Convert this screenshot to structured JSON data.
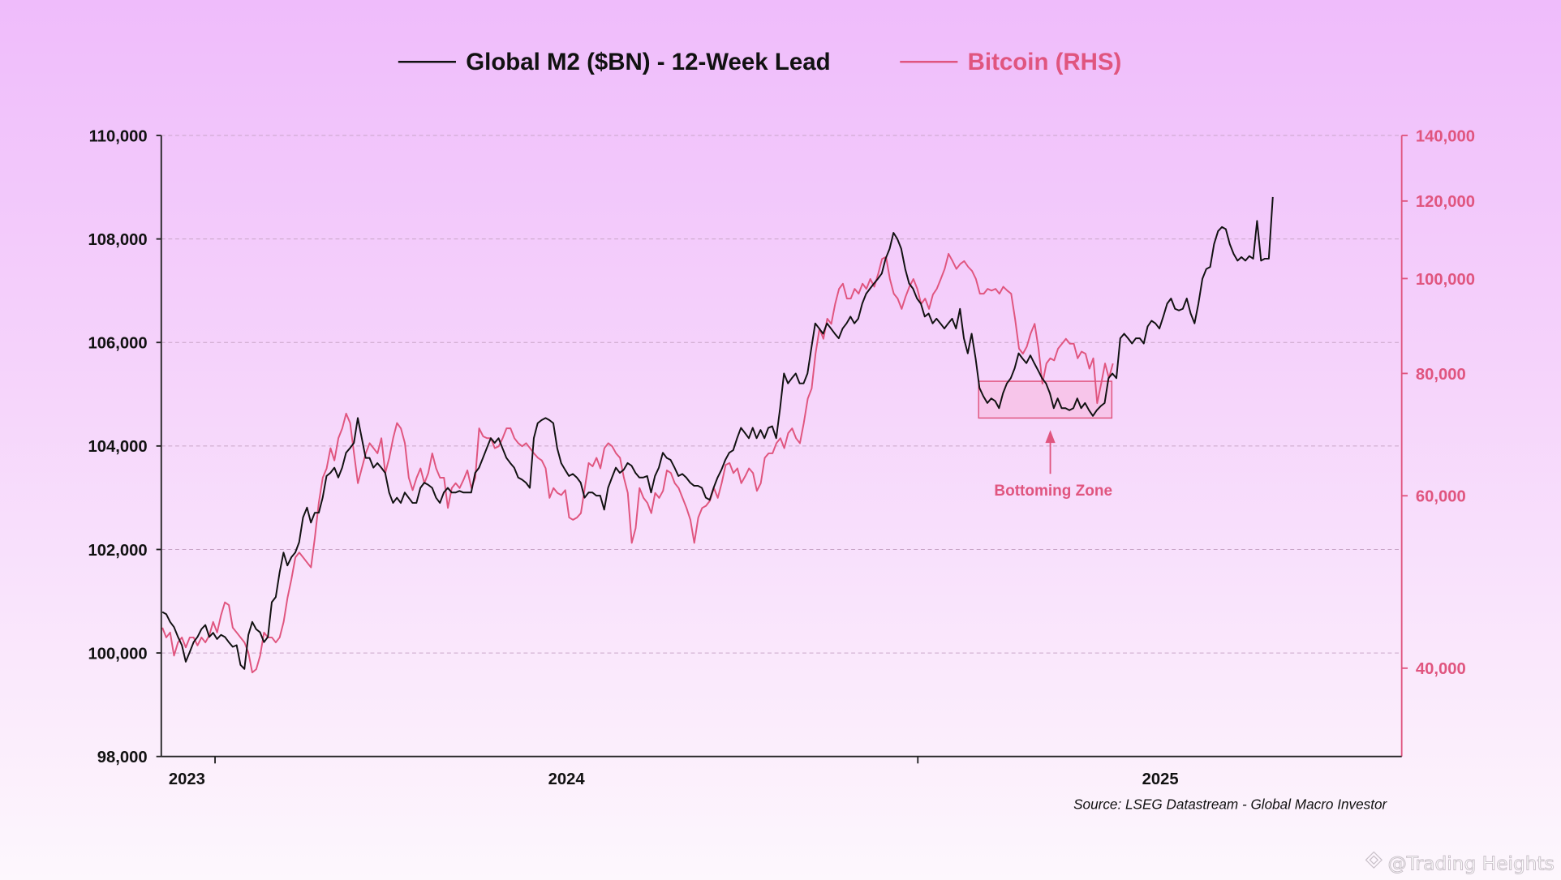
{
  "colors": {
    "m2": "#111111",
    "bitcoin": "#e0557f",
    "grid": "#c9a6c8",
    "zone_fill": "#f7b8dc",
    "background_top": "#efbcfb",
    "background_bottom": "#fdf7fd"
  },
  "legend": {
    "m2_label": "Global M2 ($BN) - 12-Week Lead",
    "bitcoin_label": "Bitcoin (RHS)"
  },
  "source": "Source: LSEG Datastream - Global Macro Investor",
  "watermark": "@Trading Heights",
  "chart_data": {
    "type": "line",
    "legend_position": "top",
    "grid": "horizontal dashed",
    "xlim": [
      2022.847,
      2026.377
    ],
    "x_ticks": [
      2023.0,
      2025.0
    ],
    "x_tick_labels": [
      {
        "label": "2023",
        "x": 2022.92
      },
      {
        "label": "2024",
        "x": 2024.0
      },
      {
        "label": "2025",
        "x": 2025.69
      }
    ],
    "y_left": {
      "ylim": [
        98000,
        110000
      ],
      "ticks": [
        98000,
        100000,
        102000,
        104000,
        106000,
        108000,
        110000
      ],
      "tick_labels": [
        "98,000",
        "100,000",
        "102,000",
        "104,000",
        "106,000",
        "108,000",
        "110,000"
      ],
      "scale": "linear"
    },
    "y_right": {
      "ylim": [
        32500,
        140000
      ],
      "ticks": [
        40000,
        60000,
        80000,
        100000,
        120000,
        140000
      ],
      "tick_labels": [
        "40,000",
        "60,000",
        "80,000",
        "100,000",
        "120,000",
        "140,000"
      ],
      "scale": "log"
    },
    "series": [
      {
        "name": "Global M2 ($BN) - 12-Week Lead",
        "axis": "left",
        "x_start": 2022.85,
        "x_end": 2026.01,
        "values": [
          100790,
          100750,
          100600,
          100500,
          100310,
          100150,
          99830,
          100020,
          100210,
          100310,
          100460,
          100540,
          100310,
          100390,
          100270,
          100350,
          100310,
          100210,
          100120,
          100150,
          99770,
          99690,
          100350,
          100600,
          100460,
          100400,
          100210,
          100310,
          100980,
          101080,
          101560,
          101940,
          101690,
          101850,
          101940,
          102140,
          102620,
          102810,
          102520,
          102710,
          102710,
          103000,
          103420,
          103480,
          103580,
          103390,
          103580,
          103870,
          103960,
          104060,
          104540,
          104150,
          103770,
          103770,
          103580,
          103670,
          103580,
          103480,
          103100,
          102900,
          103000,
          102900,
          103100,
          103000,
          102900,
          102900,
          103190,
          103290,
          103250,
          103190,
          103000,
          102900,
          103100,
          103190,
          103100,
          103100,
          103130,
          103100,
          103100,
          103100,
          103480,
          103580,
          103770,
          103960,
          104150,
          104060,
          104150,
          103960,
          103770,
          103670,
          103580,
          103390,
          103350,
          103290,
          103190,
          104150,
          104440,
          104500,
          104540,
          104500,
          104440,
          103960,
          103670,
          103540,
          103420,
          103460,
          103390,
          103290,
          103000,
          103100,
          103100,
          103040,
          103040,
          102770,
          103190,
          103390,
          103580,
          103480,
          103540,
          103670,
          103620,
          103480,
          103390,
          103390,
          103420,
          103100,
          103420,
          103580,
          103870,
          103770,
          103730,
          103580,
          103420,
          103460,
          103390,
          103290,
          103230,
          103230,
          103190,
          103000,
          102960,
          103190,
          103390,
          103540,
          103730,
          103870,
          103920,
          104150,
          104350,
          104250,
          104150,
          104350,
          104150,
          104310,
          104150,
          104350,
          104380,
          104150,
          104730,
          105400,
          105210,
          105310,
          105400,
          105210,
          105210,
          105400,
          105890,
          106370,
          106270,
          106170,
          106370,
          106270,
          106170,
          106080,
          106270,
          106370,
          106500,
          106370,
          106460,
          106750,
          106940,
          107040,
          107140,
          107230,
          107330,
          107620,
          107810,
          108120,
          108000,
          107810,
          107420,
          107140,
          107040,
          106850,
          106750,
          106500,
          106560,
          106370,
          106460,
          106370,
          106270,
          106370,
          106460,
          106270,
          106650,
          106080,
          105790,
          106170,
          105690,
          105120,
          104960,
          104830,
          104920,
          104870,
          104730,
          105020,
          105210,
          105310,
          105500,
          105790,
          105690,
          105600,
          105750,
          105600,
          105460,
          105310,
          105210,
          105020,
          104730,
          104920,
          104730,
          104730,
          104690,
          104730,
          104920,
          104730,
          104830,
          104690,
          104580,
          104690,
          104770,
          104830,
          105310,
          105400,
          105310,
          106080,
          106170,
          106080,
          105980,
          106080,
          106080,
          105980,
          106310,
          106420,
          106370,
          106270,
          106500,
          106750,
          106850,
          106650,
          106620,
          106650,
          106850,
          106560,
          106370,
          106750,
          107230,
          107420,
          107460,
          107900,
          108150,
          108230,
          108190,
          107900,
          107710,
          107580,
          107650,
          107580,
          107670,
          107620,
          108350,
          107580,
          107620,
          107620,
          108810
        ]
      },
      {
        "name": "Bitcoin (RHS)",
        "axis": "right",
        "x_start": 2022.85,
        "x_end": 2025.555,
        "values": [
          44000,
          43000,
          43500,
          41200,
          42500,
          43000,
          42000,
          43000,
          43000,
          42200,
          43000,
          42500,
          43200,
          44600,
          43500,
          45300,
          46700,
          46400,
          44000,
          43500,
          43000,
          42500,
          41500,
          39600,
          39900,
          41200,
          43500,
          43000,
          43000,
          42500,
          43000,
          44600,
          47200,
          49300,
          51900,
          52500,
          51900,
          51300,
          50700,
          54400,
          59000,
          62600,
          64000,
          67100,
          65200,
          68700,
          70300,
          72800,
          71200,
          66300,
          61800,
          64000,
          66300,
          67900,
          67100,
          66300,
          68700,
          63300,
          65600,
          68700,
          71200,
          70300,
          67900,
          62600,
          60800,
          62600,
          64000,
          61800,
          63300,
          66300,
          64000,
          62600,
          62600,
          58300,
          61100,
          61800,
          61100,
          62300,
          63700,
          61100,
          62600,
          70300,
          69000,
          68700,
          68700,
          67100,
          67400,
          68700,
          70300,
          70300,
          68700,
          67900,
          67400,
          67900,
          67100,
          66300,
          65600,
          65200,
          64000,
          59700,
          61100,
          60400,
          60100,
          60800,
          57000,
          56700,
          57000,
          57600,
          61100,
          64800,
          64300,
          65600,
          64000,
          67100,
          67900,
          67400,
          66300,
          65600,
          62600,
          60400,
          53700,
          55600,
          61100,
          59700,
          59000,
          57600,
          60400,
          59700,
          60700,
          63700,
          63300,
          61800,
          61100,
          59700,
          58300,
          56700,
          53700,
          57000,
          58300,
          58600,
          59300,
          61100,
          59700,
          61800,
          64500,
          64800,
          63300,
          64000,
          61800,
          62800,
          64000,
          63300,
          60700,
          61800,
          65600,
          66300,
          66300,
          67900,
          68700,
          67100,
          69500,
          70300,
          68700,
          67900,
          71200,
          75400,
          77200,
          83800,
          88900,
          86800,
          91000,
          89900,
          94200,
          97600,
          98800,
          95400,
          95400,
          97600,
          96500,
          98800,
          97600,
          99900,
          98100,
          101100,
          104700,
          105200,
          99900,
          96500,
          95400,
          93100,
          95800,
          98100,
          99900,
          97600,
          94200,
          95400,
          93100,
          96300,
          97600,
          99900,
          102300,
          106000,
          104200,
          102300,
          103500,
          104200,
          102800,
          101800,
          99900,
          96500,
          96500,
          97600,
          97200,
          97600,
          96500,
          98100,
          97200,
          96500,
          91000,
          84800,
          83800,
          85200,
          87900,
          89900,
          84800,
          78100,
          81900,
          82900,
          82500,
          84800,
          85800,
          86800,
          85800,
          85800,
          82900,
          84200,
          83800,
          80900,
          82900,
          74600,
          78100,
          81900,
          79100,
          81900
        ]
      }
    ],
    "annotations": [
      {
        "type": "box",
        "label": "Bottoming Zone",
        "x_range": [
          2025.173,
          2025.552
        ],
        "y_range_left": [
          104540,
          105250
        ]
      },
      {
        "type": "arrow",
        "x": 2025.377
      }
    ]
  }
}
